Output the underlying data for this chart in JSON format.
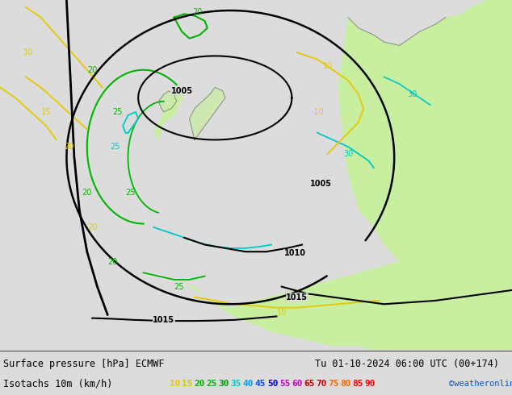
{
  "title_line1": "Surface pressure [hPa] ECMWF",
  "title_line2": "Isotachs 10m (km/h)",
  "date_str": "Tu 01-10-2024 06:00 UTC (00+174)",
  "watermark": "©weatheronline.co.uk",
  "bg_gray": "#dcdcdc",
  "bg_green": "#c8eea0",
  "bg_white": "#ffffff",
  "isotach_values": [
    10,
    15,
    20,
    25,
    30,
    35,
    40,
    45,
    50,
    55,
    60,
    65,
    70,
    75,
    80,
    85,
    90
  ],
  "isotach_colors": [
    "#e6c800",
    "#c8c800",
    "#00b400",
    "#00b400",
    "#009600",
    "#00c8c8",
    "#00a0ff",
    "#0050ff",
    "#0000c8",
    "#c800c8",
    "#c800c8",
    "#c80000",
    "#c80000",
    "#ff6400",
    "#ff6400",
    "#ff0000",
    "#ff0000"
  ],
  "figsize": [
    6.34,
    4.9
  ],
  "dpi": 100
}
